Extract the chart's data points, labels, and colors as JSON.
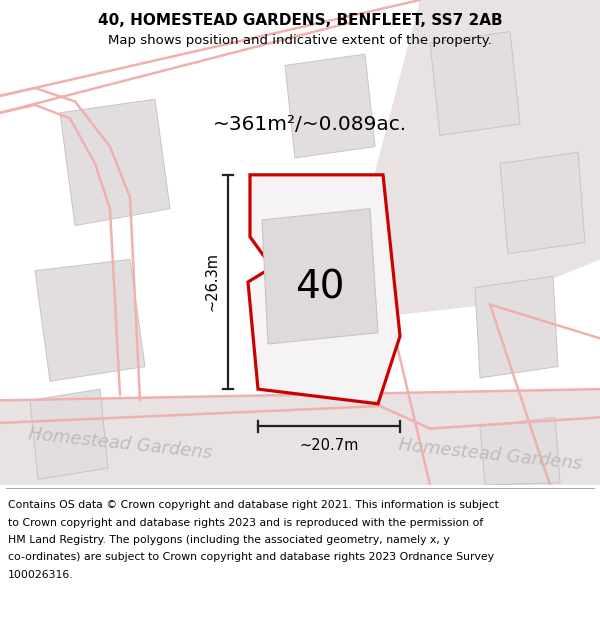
{
  "title": "40, HOMESTEAD GARDENS, BENFLEET, SS7 2AB",
  "subtitle": "Map shows position and indicative extent of the property.",
  "area_label": "~361m²/~0.089ac.",
  "plot_number": "40",
  "dim_width": "~20.7m",
  "dim_height": "~26.3m",
  "street_label": "Homestead Gardens",
  "map_bg": "#f2f0f0",
  "plot_fill": "#f5f3f3",
  "plot_edge_color": "#cc0000",
  "building_fill": "#e2dedf",
  "road_fill": "#e8e2e2",
  "pink": "#f0b0b0",
  "dim_color": "#222222",
  "street_color": "#c0bcbc",
  "title_fontsize": 11,
  "subtitle_fontsize": 9.5,
  "footnote_fontsize": 7.8,
  "footnote_lines": [
    "Contains OS data © Crown copyright and database right 2021. This information is subject",
    "to Crown copyright and database rights 2023 and is reproduced with the permission of",
    "HM Land Registry. The polygons (including the associated geometry, namely x, y",
    "co-ordinates) are subject to Crown copyright and database rights 2023 Ordnance Survey",
    "100026316."
  ]
}
